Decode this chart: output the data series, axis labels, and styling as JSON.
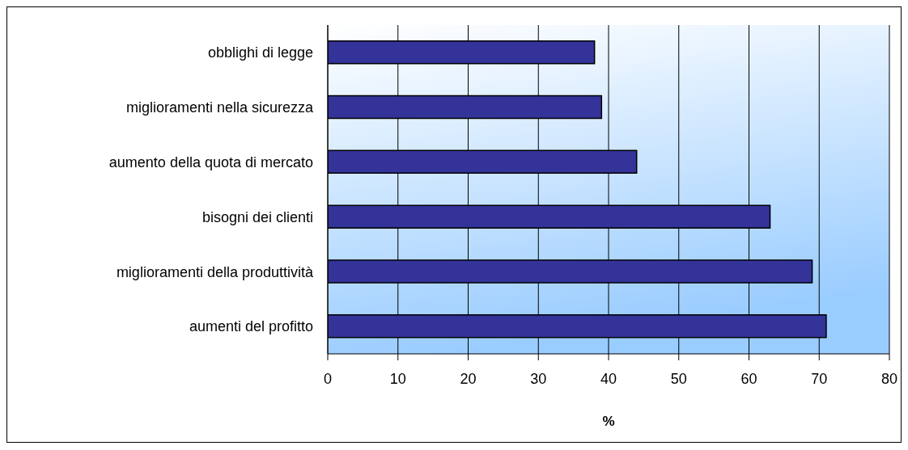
{
  "chart_data": {
    "type": "bar",
    "orientation": "horizontal",
    "categories": [
      "obblighi di legge",
      "miglioramenti nella sicurezza",
      "aumento della quota di mercato",
      "bisogni dei clienti",
      "miglioramenti della produttività",
      "aumenti del profitto"
    ],
    "values": [
      38,
      39,
      44,
      63,
      69,
      71
    ],
    "color": "#333399",
    "xlabel": "%",
    "xlim": [
      0,
      80
    ],
    "xticks": [
      0,
      10,
      20,
      30,
      40,
      50,
      60,
      70,
      80
    ],
    "grid": "x"
  }
}
